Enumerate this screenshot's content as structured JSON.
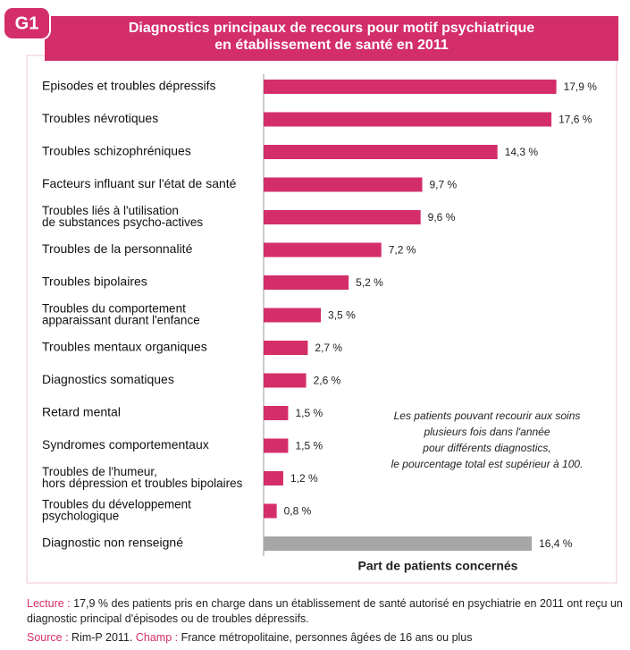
{
  "figure_label": "G1",
  "chart_data": {
    "type": "bar",
    "orientation": "horizontal",
    "title": "Diagnostics principaux de recours pour motif psychiatrique\nen établissement de santé en 2011",
    "categories": [
      "Episodes et troubles dépressifs",
      "Troubles névrotiques",
      "Troubles schizophréniques",
      "Facteurs influant sur l'état de santé",
      "Troubles liés à l'utilisation\nde substances psycho-actives",
      "Troubles de la personnalité",
      "Troubles bipolaires",
      "Troubles du comportement\napparaissant durant l'enfance",
      "Troubles mentaux organiques",
      "Diagnostics somatiques",
      "Retard mental",
      "Syndromes comportementaux",
      "Troubles de l'humeur,\nhors dépression et troubles bipolaires",
      "Troubles du développement\npsychologique",
      "Diagnostic non renseigné"
    ],
    "values": [
      17.9,
      17.6,
      14.3,
      9.7,
      9.6,
      7.2,
      5.2,
      3.5,
      2.7,
      2.6,
      1.5,
      1.5,
      1.2,
      0.8,
      16.4
    ],
    "value_labels": [
      "17,9 %",
      "17,6 %",
      "14,3 %",
      "9,7 %",
      "9,6 %",
      "7,2 %",
      "5,2 %",
      "3,5 %",
      "2,7 %",
      "2,6 %",
      "1,5 %",
      "1,5 %",
      "1,2 %",
      "0,8 %",
      "16,4 %"
    ],
    "colors": [
      "#d42e6a",
      "#d42e6a",
      "#d42e6a",
      "#d42e6a",
      "#d42e6a",
      "#d42e6a",
      "#d42e6a",
      "#d42e6a",
      "#d42e6a",
      "#d42e6a",
      "#d42e6a",
      "#d42e6a",
      "#d42e6a",
      "#d42e6a",
      "#a6a6a6"
    ],
    "xlim": [
      0,
      20
    ],
    "xlabel": "Part de patients concernés",
    "annotation": "Les patients pouvant recourir aux soins\nplusieurs fois dans l'année\npour différents diagnostics,\nle pourcentage total est supérieur à 100."
  },
  "notes": [
    [
      {
        "label": "Lecture :"
      },
      {
        "text": "17,9 % des patients pris en charge dans un établissement de santé autorisé en psychiatrie en 2011 ont reçu un diagnostic principal d'épisodes ou de troubles dépressifs."
      }
    ],
    [
      {
        "label": "Source :"
      },
      {
        "text": "Rim-P 2011."
      },
      {
        "label": "Champ :"
      },
      {
        "text": "France métropolitaine, personnes âgées de 16 ans ou plus"
      }
    ]
  ]
}
